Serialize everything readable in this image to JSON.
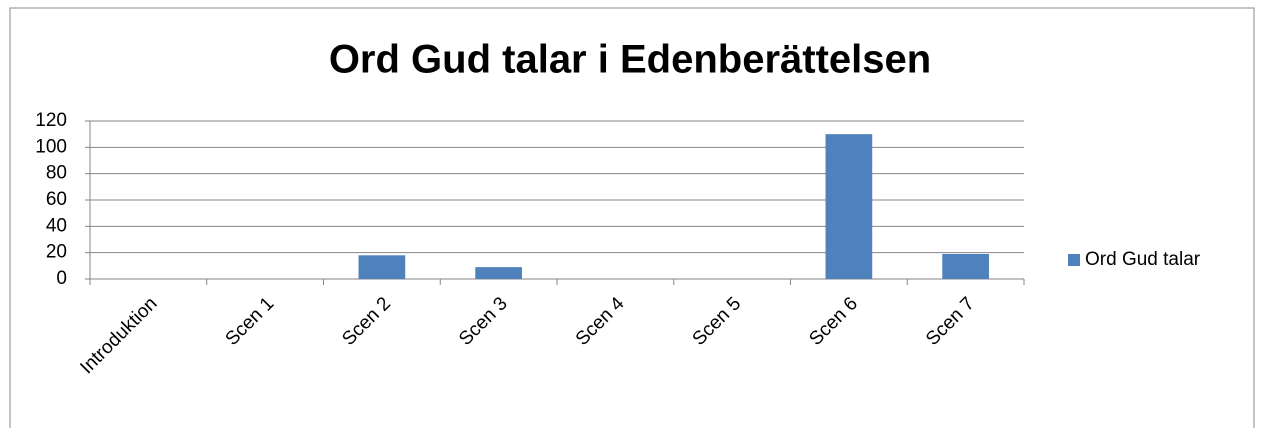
{
  "chart_data": {
    "type": "bar",
    "title": "Ord Gud talar i Edenberättelsen",
    "categories": [
      "Introduktion",
      "Scen 1",
      "Scen 2",
      "Scen 3",
      "Scen 4",
      "Scen 5",
      "Scen 6",
      "Scen 7"
    ],
    "series": [
      {
        "name": "Ord Gud talar",
        "color": "#4f81bd",
        "values": [
          0,
          0,
          18,
          9,
          0,
          0,
          110,
          19
        ]
      }
    ],
    "ylim": [
      0,
      120
    ],
    "yticks": [
      0,
      20,
      40,
      60,
      80,
      100,
      120
    ],
    "grid": true,
    "legend": "right"
  }
}
